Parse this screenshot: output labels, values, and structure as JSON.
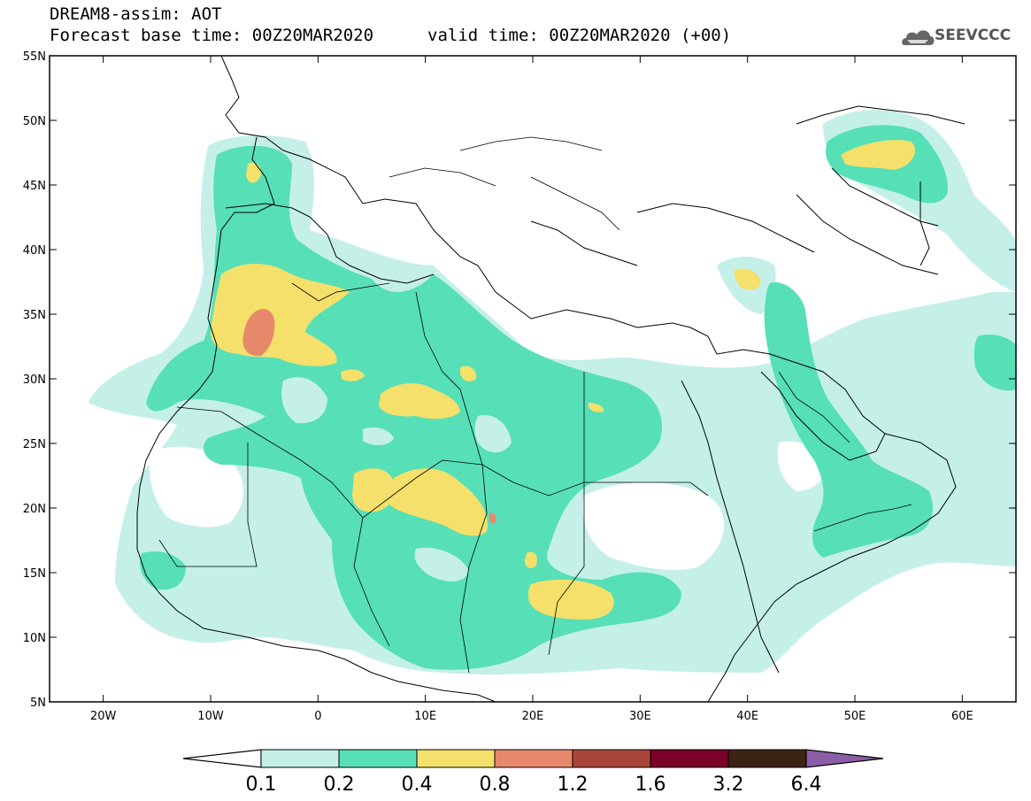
{
  "header": {
    "line1": "DREAM8-assim: AOT",
    "line2_left": "Forecast base time: 00Z20MAR2020",
    "line2_right": "valid time: 00Z20MAR2020 (+00)",
    "logo_text": "SEEVCCC",
    "logo_icon": "cloud-icon"
  },
  "map": {
    "lon_range": [
      -25,
      65
    ],
    "lat_range": [
      5,
      55
    ],
    "lat_ticks": [
      "55N",
      "50N",
      "45N",
      "40N",
      "35N",
      "30N",
      "25N",
      "20N",
      "15N",
      "10N",
      "5N"
    ],
    "lon_ticks": [
      "20W",
      "10W",
      "0",
      "10E",
      "20E",
      "30E",
      "40E",
      "50E",
      "60E"
    ]
  },
  "colorbar": {
    "labels": [
      "0.1",
      "0.2",
      "0.4",
      "0.8",
      "1.2",
      "1.6",
      "3.2",
      "6.4"
    ],
    "colors": [
      "#ffffff",
      "#c4f0e8",
      "#57dfb8",
      "#f4e06b",
      "#e8886a",
      "#a8463a",
      "#7a0028",
      "#3b2314",
      "#8b5ea8"
    ]
  }
}
